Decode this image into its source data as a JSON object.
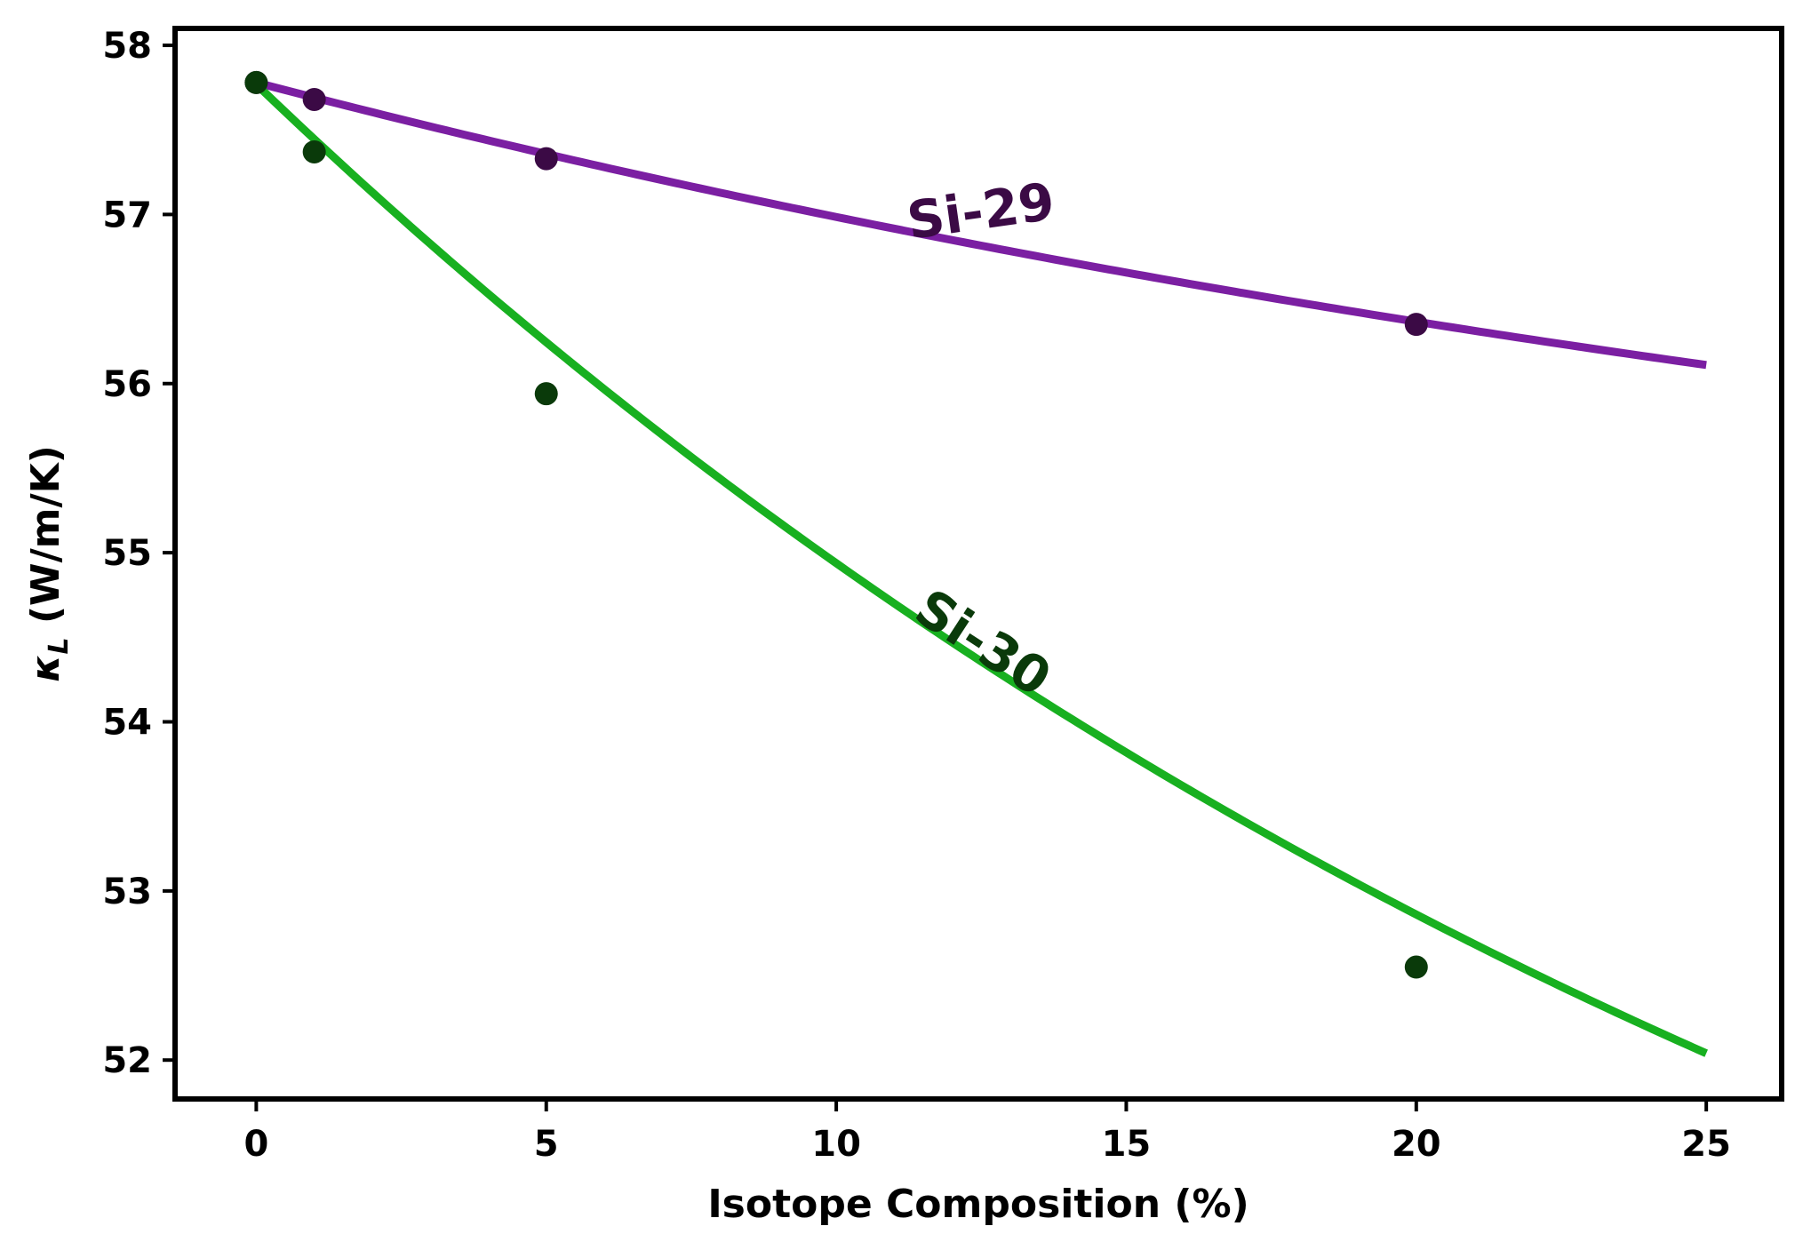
{
  "chart_data": {
    "type": "scatter",
    "title": "",
    "xlabel": "Isotope Composition (%)",
    "ylabel": "κL (W/m/K)",
    "ylabel_parts": {
      "symbol": "κ",
      "subscript": "L",
      "units": " (W/m/K)"
    },
    "xlim": [
      -1.4,
      26.3
    ],
    "ylim": [
      51.77,
      58.1
    ],
    "xticks": [
      0,
      5,
      10,
      15,
      20,
      25
    ],
    "xtick_labels": [
      "0",
      "5",
      "10",
      "15",
      "20",
      "25"
    ],
    "yticks": [
      52,
      53,
      54,
      55,
      56,
      57,
      58
    ],
    "ytick_labels": [
      "52",
      "53",
      "54",
      "55",
      "56",
      "57",
      "58"
    ],
    "grid": false,
    "legend": "none",
    "series": [
      {
        "name": "Si-29",
        "line_color": "#7b1fa2",
        "marker_color": "#3b0a45",
        "label_color": "#3b0a45",
        "points": {
          "x": [
            0,
            1,
            5,
            20
          ],
          "y": [
            57.78,
            57.68,
            57.33,
            56.35
          ]
        },
        "fit": {
          "x_range": [
            0,
            25
          ],
          "y0": 57.78,
          "y_end": 56.11,
          "curvature": 0.025
        }
      },
      {
        "name": "Si-30",
        "line_color": "#18b020",
        "marker_color": "#0a3a0a",
        "label_color": "#0a3a0a",
        "points": {
          "x": [
            0,
            1,
            5,
            20
          ],
          "y": [
            57.78,
            57.37,
            55.94,
            52.55
          ]
        },
        "fit": {
          "x_range": [
            0,
            25
          ],
          "y0": 57.77,
          "y_end": 52.04,
          "curvature": 0.031
        }
      }
    ],
    "annotations": [
      {
        "text": "Si-29",
        "x": 12.5,
        "y": 57.0,
        "rotation": -8
      },
      {
        "text": "Si-30",
        "x": 12.5,
        "y": 54.45,
        "rotation": 33
      }
    ]
  }
}
